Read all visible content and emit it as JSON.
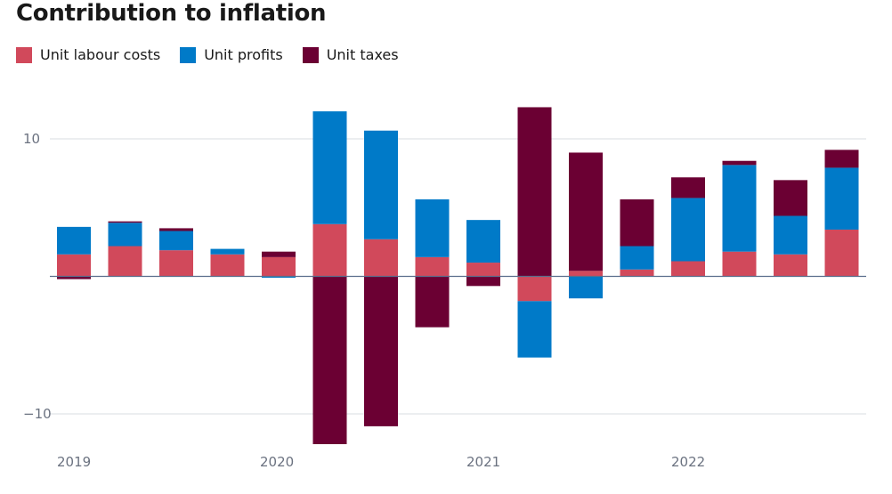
{
  "title": "Contribution to inflation",
  "colors": {
    "labour": "#d1495b",
    "profits": "#007ac8",
    "taxes": "#6b0033",
    "grid": "#d9dce1",
    "zero": "#5a6e8c"
  },
  "chart_data": {
    "type": "bar",
    "stacked": true,
    "title": "Contribution to inflation",
    "xlabel": "",
    "ylabel": "",
    "ylim": [
      -12.3,
      13.5
    ],
    "yticks": [
      10,
      -10
    ],
    "ytick_labels": [
      "10",
      "−10"
    ],
    "xtick_labels": [
      "2019",
      "2020",
      "2021",
      "2022"
    ],
    "grid": true,
    "legend_position": "top-left",
    "categories": [
      "2019 Q1",
      "2019 Q2",
      "2019 Q3",
      "2019 Q4",
      "2020 Q1",
      "2020 Q2",
      "2020 Q3",
      "2020 Q4",
      "2021 Q1",
      "2021 Q2",
      "2021 Q3",
      "2021 Q4",
      "2022 Q1",
      "2022 Q2",
      "2022 Q3",
      "2022 Q4"
    ],
    "series": [
      {
        "name": "Unit labour costs",
        "values": [
          1.6,
          2.2,
          1.9,
          1.6,
          1.4,
          3.8,
          2.7,
          1.4,
          1.0,
          -1.8,
          0.4,
          0.5,
          1.1,
          1.8,
          1.6,
          3.4
        ]
      },
      {
        "name": "Unit profits",
        "values": [
          2.0,
          1.7,
          1.4,
          0.4,
          -0.1,
          8.2,
          7.9,
          4.2,
          3.1,
          -4.1,
          -1.6,
          1.7,
          4.6,
          6.3,
          2.8,
          4.5
        ]
      },
      {
        "name": "Unit taxes",
        "values": [
          -0.2,
          0.1,
          0.2,
          0.0,
          0.4,
          -12.2,
          -10.9,
          -3.7,
          -0.7,
          12.3,
          8.6,
          3.4,
          1.5,
          0.3,
          2.6,
          1.3
        ]
      }
    ]
  }
}
